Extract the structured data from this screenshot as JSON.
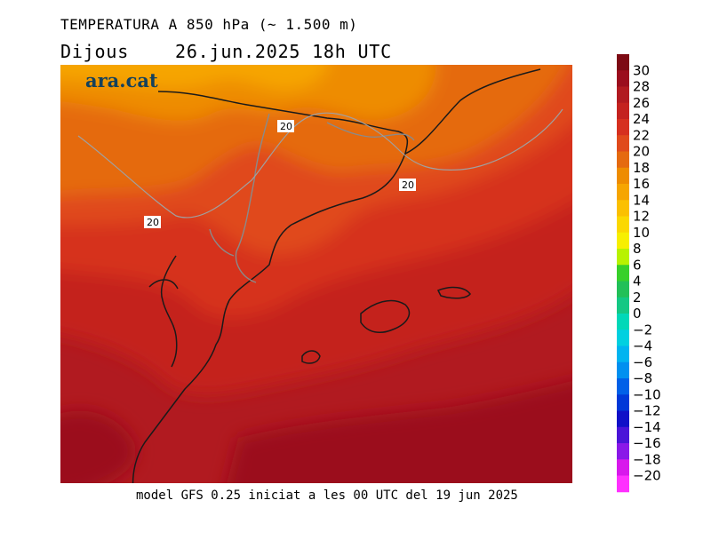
{
  "header": {
    "title": "TEMPERATURA A 850 hPa (~ 1.500 m)",
    "day": "Dijous",
    "datetime": "26.jun.2025 18h UTC"
  },
  "footer": "model GFS 0.25 iniciat a les 00 UTC del 19 jun 2025",
  "map": {
    "logo": "ara.cat",
    "contour_labels": [
      "20",
      "20",
      "20"
    ]
  },
  "legend": {
    "ticks": [
      "30",
      "28",
      "26",
      "24",
      "22",
      "20",
      "18",
      "16",
      "14",
      "12",
      "10",
      "8",
      "6",
      "4",
      "2",
      "0",
      "−2",
      "−4",
      "−6",
      "−8",
      "−10",
      "−12",
      "−14",
      "−16",
      "−18",
      "−20"
    ],
    "colors": [
      "#7d0a14",
      "#9b0d1d",
      "#b11a20",
      "#c4221f",
      "#d6301f",
      "#e04a1c",
      "#e56a0f",
      "#ee8c00",
      "#f6a500",
      "#fbc000",
      "#fbd800",
      "#f7ef00",
      "#b8f200",
      "#38d02a",
      "#22c058",
      "#14c884",
      "#00d8b8",
      "#00d0e0",
      "#00b4f0",
      "#0090f0",
      "#0060e8",
      "#0038d8",
      "#1010c8",
      "#4a14d8",
      "#8a18e8",
      "#d818ec",
      "#ff30ff"
    ]
  }
}
